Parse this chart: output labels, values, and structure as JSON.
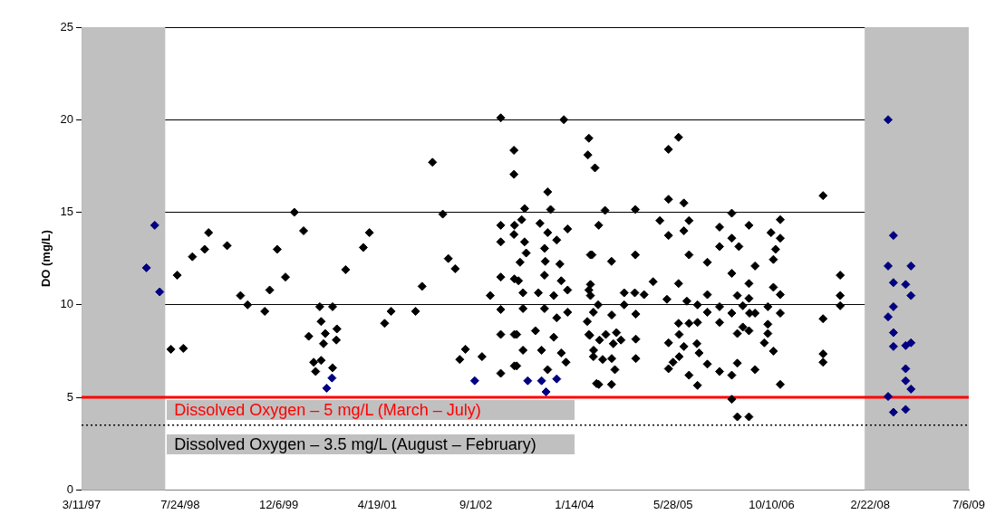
{
  "chart_data": {
    "type": "scatter",
    "ylabel": "DO (mg/L)",
    "marker": "diamond",
    "grid": "y",
    "legend": false,
    "xlim": [
      "1997-03-11",
      "2009-07-06"
    ],
    "xticks": [
      {
        "value": "1997-03-11",
        "label": "3/11/97"
      },
      {
        "value": "1998-07-24",
        "label": "7/24/98"
      },
      {
        "value": "1999-12-06",
        "label": "12/6/99"
      },
      {
        "value": "2001-04-19",
        "label": "4/19/01"
      },
      {
        "value": "2002-09-01",
        "label": "9/1/02"
      },
      {
        "value": "2004-01-14",
        "label": "1/14/04"
      },
      {
        "value": "2005-05-28",
        "label": "5/28/05"
      },
      {
        "value": "2006-10-10",
        "label": "10/10/06"
      },
      {
        "value": "2008-02-22",
        "label": "2/22/08"
      },
      {
        "value": "2009-07-06",
        "label": "7/6/09"
      }
    ],
    "ylim": [
      0,
      25
    ],
    "yticks": [
      0,
      5,
      10,
      15,
      20,
      25
    ],
    "bands": [
      {
        "axis": "x",
        "from": "1997-03-11",
        "to": "1998-05-09",
        "color": "#c0c0c0"
      },
      {
        "axis": "x",
        "from": "2008-01-25",
        "to": "2009-07-06",
        "color": "#c0c0c0"
      }
    ],
    "ref_lines": [
      {
        "axis": "y",
        "value": 5,
        "label": "Dissolved Oxygen – 5 mg/L (March – July)",
        "color": "#ff0000"
      },
      {
        "axis": "y",
        "value": 3.5,
        "label": "Dissolved Oxygen – 3.5 mg/L (August – February)",
        "color": "#000000",
        "line_style": "dotted"
      }
    ],
    "series": [
      {
        "color": "#000000",
        "x": [
          "1998-06-07",
          "1998-08-09",
          "1998-07-09",
          "1998-09-24",
          "1998-11-25",
          "1998-12-15",
          "1999-03-19",
          "1999-05-26",
          "1999-07-01",
          "1999-09-26",
          "1999-10-21",
          "1999-11-28",
          "2000-01-09",
          "2000-02-23",
          "2000-04-10",
          "2000-05-06",
          "2000-05-31",
          "2000-06-10",
          "2000-07-08",
          "2000-07-01",
          "2000-07-08",
          "2000-07-29",
          "2000-07-20",
          "2000-09-04",
          "2000-09-26",
          "2000-09-23",
          "2000-09-04",
          "2000-11-09",
          "2001-02-07",
          "2001-03-10",
          "2001-05-26",
          "2001-06-28",
          "2001-10-30",
          "2001-12-02",
          "2002-01-24",
          "2002-03-17",
          "2002-04-14",
          "2002-05-19",
          "2002-06-11",
          "2002-07-10",
          "2002-10-02",
          "2002-11-13",
          "2003-01-05",
          "2003-01-05",
          "2003-01-05",
          "2003-01-05",
          "2003-01-05",
          "2003-01-05",
          "2003-01-05",
          "2003-03-13",
          "2003-03-13",
          "2003-03-13",
          "2003-03-15",
          "2003-03-15",
          "2003-03-15",
          "2003-11-21",
          "2003-08-31",
          "2004-03-22",
          "2004-03-27",
          "2004-04-27",
          "2003-05-06",
          "2003-09-15",
          "2003-04-21",
          "2003-03-16",
          "2003-07-23",
          "2003-12-10",
          "2003-08-31",
          "2003-05-06",
          "2003-10-16",
          "2003-08-15",
          "2004-04-04",
          "2003-05-14",
          "2003-11-01",
          "2003-04-13",
          "2003-08-19",
          "2003-04-05",
          "2003-08-15",
          "2003-11-08",
          "2003-04-28",
          "2003-07-15",
          "2003-10-01",
          "2003-12-10",
          "2004-03-27",
          "2003-04-28",
          "2003-08-15",
          "2003-10-16",
          "2003-12-10",
          "2003-03-27",
          "2003-06-30",
          "2003-10-01",
          "2004-03-27",
          "2003-04-28",
          "2003-07-31",
          "2003-11-08",
          "2004-04-20",
          "2003-03-27",
          "2003-08-31",
          "2003-12-02",
          "2004-05-05",
          "2004-06-17",
          "2004-05-16",
          "2004-04-12",
          "2004-07-20",
          "2004-11-18",
          "2004-11-18",
          "2004-04-04",
          "2004-04-04",
          "2004-04-19",
          "2004-05-13",
          "2004-03-19",
          "2004-07-21",
          "2004-09-22",
          "2004-09-22",
          "2004-11-15",
          "2005-01-01",
          "2005-02-16",
          "2004-11-20",
          "2004-03-31",
          "2004-05-20",
          "2004-06-21",
          "2004-08-14",
          "2004-09-06",
          "2004-07-29",
          "2004-04-19",
          "2004-06-05",
          "2004-07-21",
          "2004-08-06",
          "2004-11-20",
          "2004-11-20",
          "2004-05-16",
          "2004-07-20",
          "2005-06-25",
          "2005-05-05",
          "2005-05-05",
          "2005-07-22",
          "2005-03-22",
          "2005-08-17",
          "2005-07-22",
          "2005-05-05",
          "2006-01-19",
          "2006-01-19",
          "2005-08-17",
          "2005-11-18",
          "2005-06-25",
          "2005-04-27",
          "2005-08-06",
          "2005-09-29",
          "2005-11-18",
          "2005-11-18",
          "2006-01-19",
          "2005-06-25",
          "2005-08-17",
          "2005-09-29",
          "2006-01-19",
          "2005-05-05",
          "2005-06-28",
          "2005-07-22",
          "2005-06-28",
          "2005-09-26",
          "2005-10-07",
          "2005-05-28",
          "2005-05-05",
          "2005-11-18",
          "2006-01-19",
          "2005-08-17",
          "2005-09-29",
          "2006-03-22",
          "2006-06-17",
          "2006-11-23",
          "2006-10-07",
          "2006-11-23",
          "2006-03-22",
          "2006-04-27",
          "2006-10-30",
          "2006-10-19",
          "2006-07-18",
          "2006-03-22",
          "2006-06-17",
          "2006-10-19",
          "2006-11-23",
          "2006-04-19",
          "2006-06-17",
          "2006-05-17",
          "2006-09-21",
          "2006-03-22",
          "2006-06-20",
          "2006-07-18",
          "2006-11-23",
          "2006-05-17",
          "2006-06-17",
          "2006-04-19",
          "2006-09-21",
          "2006-09-21",
          "2006-09-03",
          "2006-10-19",
          "2006-04-19",
          "2006-07-18",
          "2006-03-22",
          "2006-11-23",
          "2006-03-22",
          "2006-04-19",
          "2006-06-17",
          "2007-06-28",
          "2007-09-23",
          "2007-09-23",
          "2007-09-23",
          "2007-06-28",
          "2007-06-28",
          "2007-06-28"
        ],
        "values": [
          7.6,
          7.65,
          11.6,
          12.6,
          13.0,
          13.9,
          13.2,
          10.5,
          10.0,
          9.65,
          10.8,
          13.0,
          11.5,
          15.0,
          14.0,
          8.3,
          6.9,
          6.4,
          7.0,
          9.9,
          9.1,
          8.45,
          7.9,
          9.9,
          8.7,
          8.1,
          6.6,
          11.9,
          13.1,
          13.9,
          9.0,
          9.65,
          9.65,
          11.0,
          17.7,
          14.9,
          12.5,
          11.95,
          7.05,
          7.6,
          7.2,
          10.5,
          20.1,
          14.3,
          13.4,
          11.5,
          9.75,
          8.4,
          6.3,
          18.35,
          17.05,
          13.8,
          11.4,
          8.4,
          6.7,
          20.0,
          16.1,
          18.1,
          19.0,
          17.4,
          15.2,
          15.15,
          14.6,
          14.3,
          14.4,
          14.1,
          13.9,
          13.4,
          13.5,
          13.05,
          12.7,
          12.8,
          12.2,
          12.3,
          12.35,
          11.3,
          11.6,
          11.3,
          10.65,
          10.65,
          10.5,
          10.8,
          10.8,
          9.8,
          9.8,
          9.3,
          9.6,
          8.4,
          8.6,
          8.25,
          8.4,
          7.55,
          7.55,
          7.4,
          7.55,
          6.7,
          6.5,
          6.9,
          5.75,
          15.1,
          14.3,
          12.7,
          12.35,
          12.7,
          15.15,
          11.1,
          10.5,
          9.6,
          10.0,
          9.1,
          9.45,
          10.65,
          10.0,
          10.65,
          10.55,
          11.25,
          9.5,
          8.35,
          8.1,
          8.4,
          8.5,
          8.1,
          7.9,
          7.2,
          7.05,
          7.1,
          6.5,
          8.15,
          7.1,
          5.7,
          5.7,
          19.05,
          18.4,
          15.7,
          15.5,
          14.55,
          14.55,
          14.0,
          13.75,
          14.2,
          13.15,
          12.7,
          12.3,
          11.15,
          10.3,
          10.2,
          10.0,
          10.55,
          9.6,
          9.9,
          9.0,
          9.0,
          9.05,
          9.05,
          7.95,
          8.4,
          7.75,
          7.2,
          7.9,
          7.4,
          6.9,
          6.55,
          6.8,
          6.4,
          6.2,
          5.65,
          14.95,
          14.3,
          14.6,
          13.9,
          13.6,
          13.6,
          13.15,
          13.0,
          12.45,
          12.1,
          11.7,
          11.15,
          10.95,
          10.55,
          10.5,
          10.35,
          9.95,
          9.9,
          9.55,
          9.55,
          9.55,
          9.55,
          8.8,
          8.6,
          8.45,
          8.95,
          8.45,
          7.95,
          7.5,
          6.85,
          6.5,
          6.2,
          5.7,
          4.9,
          3.95,
          3.95,
          15.9,
          11.6,
          10.5,
          9.95,
          9.25,
          7.35,
          6.9
        ]
      },
      {
        "color": "#000080",
        "x": [
          "1998-02-03",
          "1998-03-17",
          "1998-04-11",
          "2000-08-05",
          "2000-09-01",
          "2002-08-26",
          "2003-05-22",
          "2003-07-31",
          "2003-08-23",
          "2003-10-16",
          "2008-05-23",
          "2008-06-19",
          "2008-05-23",
          "2008-09-16",
          "2008-06-19",
          "2008-08-20",
          "2008-09-16",
          "2008-06-19",
          "2008-05-23",
          "2008-06-19",
          "2008-06-19",
          "2008-08-20",
          "2008-09-16",
          "2008-08-20",
          "2008-08-20",
          "2008-09-16",
          "2008-05-23",
          "2008-06-19",
          "2008-08-20"
        ],
        "values": [
          12.0,
          14.3,
          10.7,
          5.5,
          6.05,
          5.9,
          5.9,
          5.9,
          5.3,
          6.0,
          20.0,
          13.75,
          12.1,
          12.1,
          11.2,
          11.1,
          10.5,
          9.9,
          9.35,
          8.5,
          7.75,
          7.8,
          7.95,
          6.55,
          5.9,
          5.45,
          5.05,
          4.2,
          4.35
        ]
      }
    ]
  }
}
